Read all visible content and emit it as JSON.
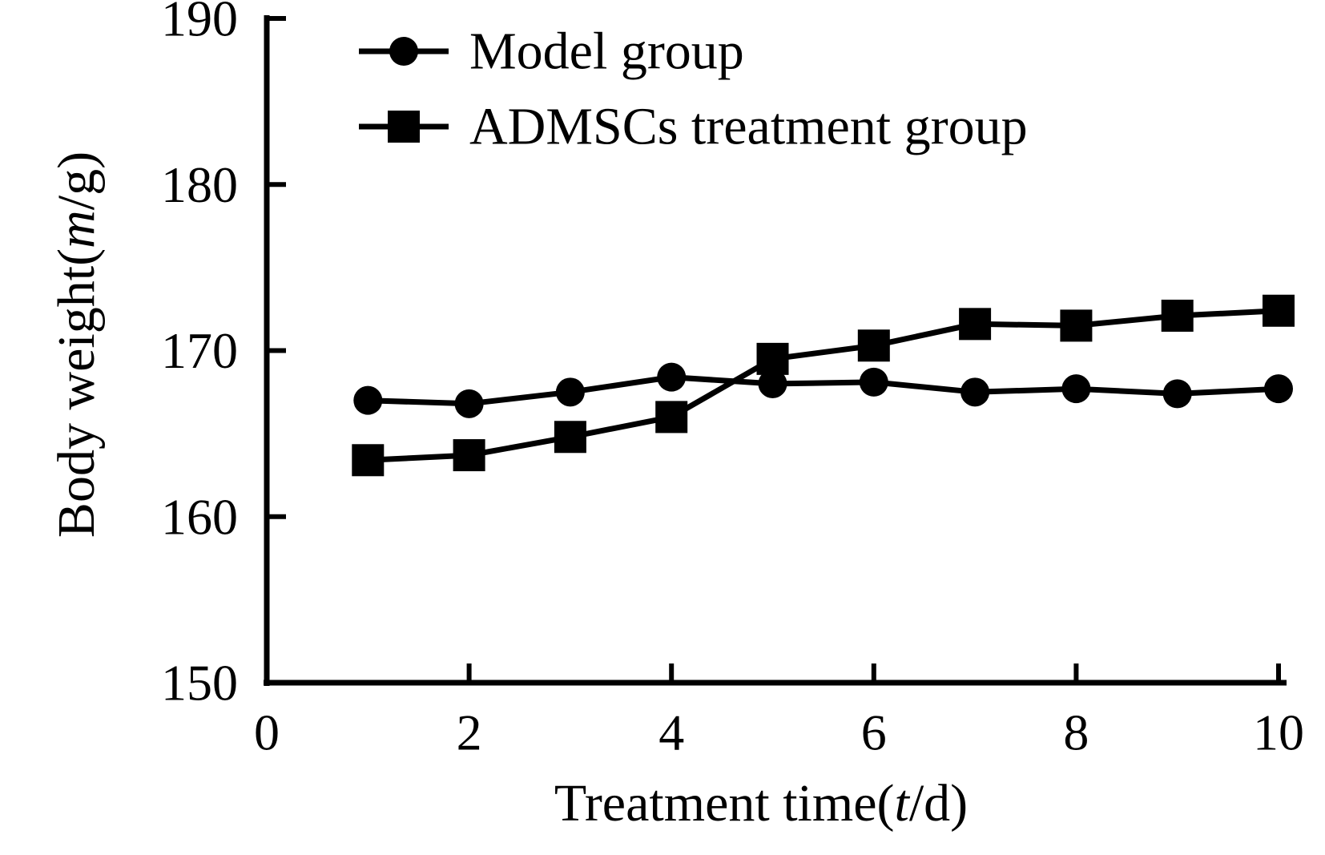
{
  "chart_data": {
    "type": "line",
    "title": "",
    "x": [
      1,
      2,
      3,
      4,
      5,
      6,
      7,
      8,
      9,
      10
    ],
    "series": [
      {
        "name": "Model group",
        "marker": "circle",
        "values": [
          167.0,
          166.8,
          167.5,
          168.4,
          168.0,
          168.1,
          167.5,
          167.7,
          167.4,
          167.7
        ]
      },
      {
        "name": "ADMSCs treatment group",
        "marker": "square",
        "values": [
          163.4,
          163.7,
          164.8,
          166.0,
          169.5,
          170.3,
          171.6,
          171.5,
          172.1,
          172.4
        ]
      }
    ],
    "xlabel": {
      "pre": "Treatment time(",
      "var": "t",
      "post": "/d)"
    },
    "ylabel": {
      "pre": "Body weight(",
      "var": "m",
      "post": "/g)"
    },
    "xlim": [
      0,
      10
    ],
    "ylim": [
      150,
      190
    ],
    "x_ticks": [
      0,
      2,
      4,
      6,
      8,
      10
    ],
    "y_ticks": [
      150,
      160,
      170,
      180,
      190
    ],
    "grid": false,
    "legend_position": "top-left-inside",
    "line_color": "#000000",
    "background": "#ffffff"
  }
}
